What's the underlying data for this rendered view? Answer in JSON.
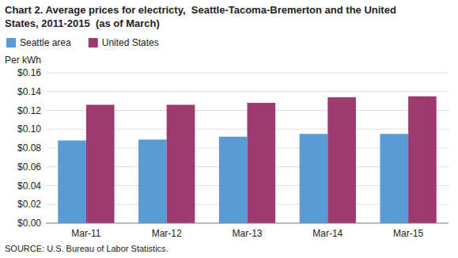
{
  "chart_data": {
    "type": "bar",
    "title": "Chart 2. Average prices for electricty,  Seattle-Tacoma-Bremerton and the United\nStates, 2011-2015  (as of March)",
    "ylabel": "Per kWh",
    "annotations": [
      "SOURCE: U.S. Bureau of Labor Statistics."
    ],
    "categories": [
      "Mar-11",
      "Mar-12",
      "Mar-13",
      "Mar-14",
      "Mar-15"
    ],
    "series": [
      {
        "name": "Seattle area",
        "color": "#5B9BD5",
        "values": [
          0.088,
          0.089,
          0.092,
          0.095,
          0.095
        ]
      },
      {
        "name": "United States",
        "color": "#9E3A6E",
        "values": [
          0.126,
          0.126,
          0.128,
          0.134,
          0.135
        ]
      }
    ],
    "ylim": [
      0,
      0.16
    ],
    "yticks": [
      {
        "value": 0,
        "label": "$0.00"
      },
      {
        "value": 0.02,
        "label": "$0.02"
      },
      {
        "value": 0.04,
        "label": "$0.04"
      },
      {
        "value": 0.06,
        "label": "$0.06"
      },
      {
        "value": 0.08,
        "label": "$0.08"
      },
      {
        "value": 0.1,
        "label": "$0.10"
      },
      {
        "value": 0.12,
        "label": "$0.12"
      },
      {
        "value": 0.14,
        "label": "$0.14"
      },
      {
        "value": 0.16,
        "label": "$0.16"
      }
    ],
    "grid": true,
    "legend": "top-left"
  }
}
